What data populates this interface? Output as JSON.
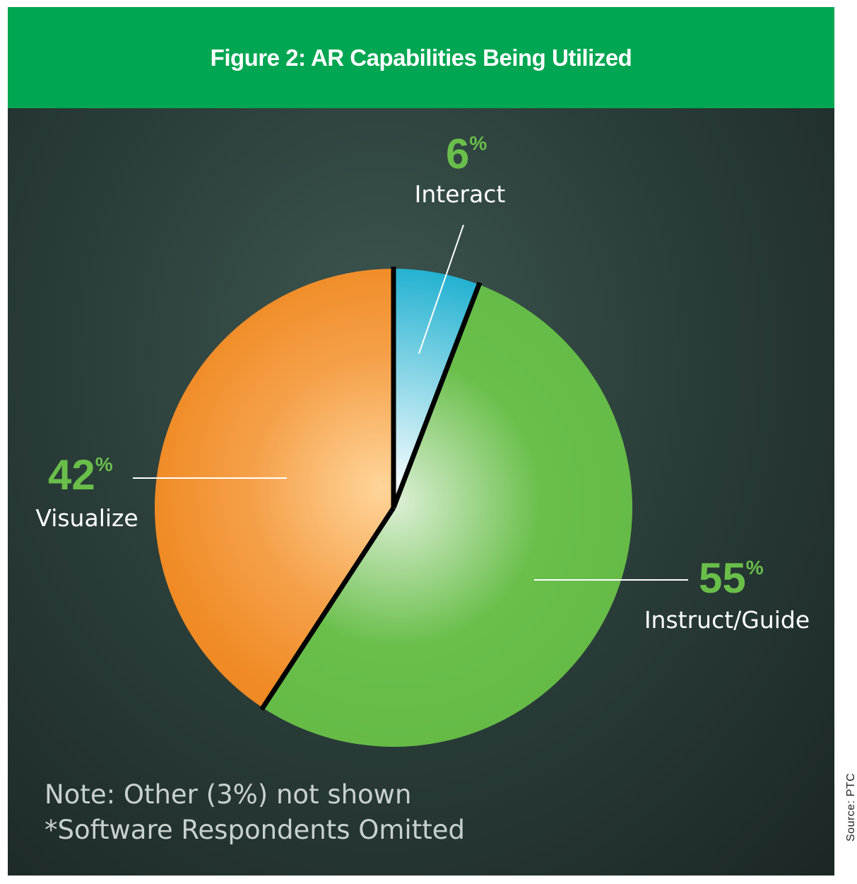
{
  "title": "Figure 2: AR Capabilities Being Utilized",
  "colors": {
    "header": "#00a651",
    "percent_text": "#6abf4b",
    "interact": "#0fb0d0",
    "instruct": "#6abf4b",
    "visualize": "#f08a24",
    "background": "#2b3e3a"
  },
  "chart_data": {
    "type": "pie",
    "title": "Figure 2: AR Capabilities Being Utilized",
    "unit": "%",
    "slices": [
      {
        "label": "Interact",
        "value": 6,
        "value_label": "6",
        "color": "#0fb0d0"
      },
      {
        "label": "Instruct/Guide",
        "value": 55,
        "value_label": "55",
        "color": "#6abf4b"
      },
      {
        "label": "Visualize",
        "value": 42,
        "value_label": "42",
        "color": "#f08a24"
      }
    ]
  },
  "notes": {
    "line1": "Note: Other (3%) not shown",
    "line2": "*Software Respondents Omitted"
  },
  "source": "Source: PTC"
}
